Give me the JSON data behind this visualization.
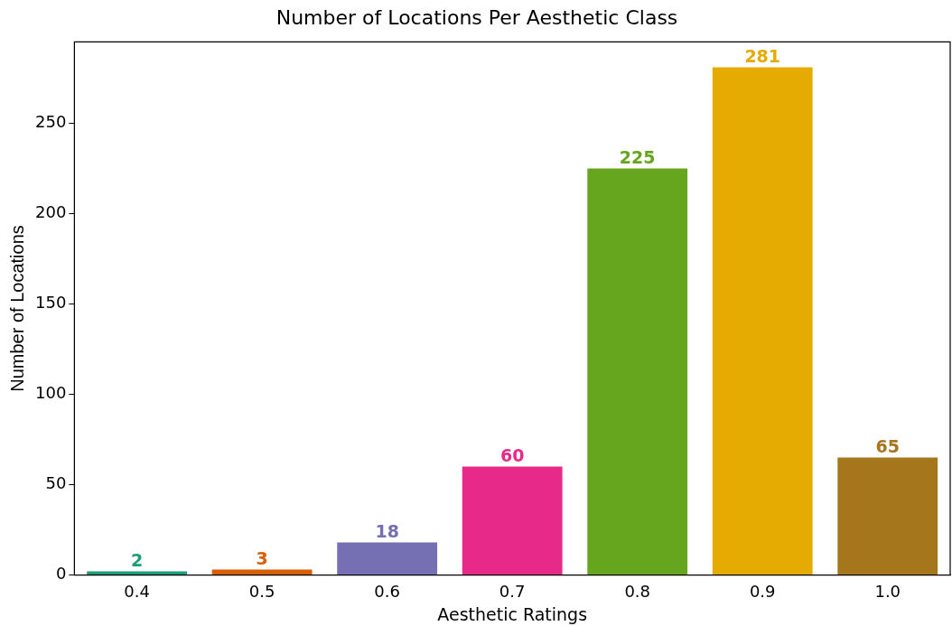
{
  "chart_data": {
    "type": "bar",
    "title": "Number of Locations Per Aesthetic Class",
    "xlabel": "Aesthetic Ratings",
    "ylabel": "Number of Locations",
    "categories": [
      "0.4",
      "0.5",
      "0.6",
      "0.7",
      "0.8",
      "0.9",
      "1.0"
    ],
    "values": [
      2,
      3,
      18,
      60,
      225,
      281,
      65
    ],
    "colors": [
      "#1b9e77",
      "#d95f02",
      "#7570b3",
      "#e7298a",
      "#66a61e",
      "#e6ab02",
      "#a6761d"
    ],
    "ylim": [
      0,
      295
    ],
    "yticks": [
      0,
      50,
      100,
      150,
      200,
      250
    ],
    "grid": false,
    "legend": false,
    "data_labels": true
  }
}
